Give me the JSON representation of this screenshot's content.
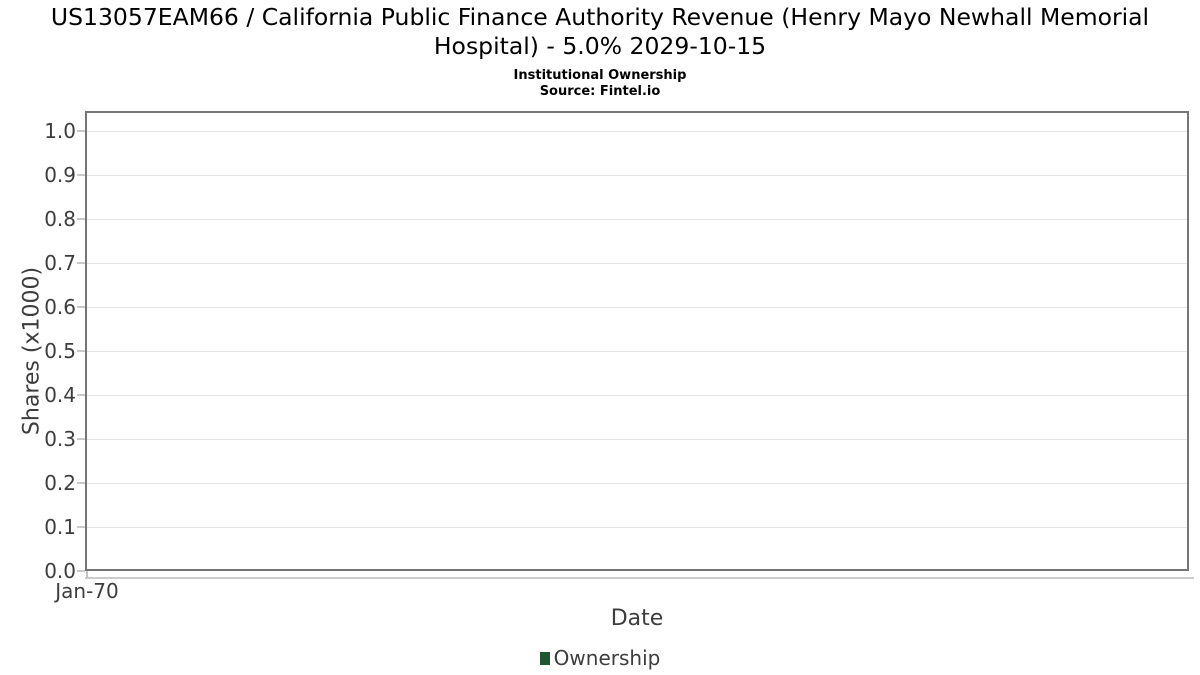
{
  "chart_data": {
    "type": "line",
    "title": "US13057EAM66 / California Public Finance Authority Revenue (Henry Mayo Newhall Memorial Hospital) - 5.0% 2029-10-15",
    "subtitle": "Institutional Ownership",
    "source": "Source: Fintel.io",
    "xlabel": "Date",
    "ylabel": "Shares (x1000)",
    "x_ticks": [
      "Jan-70"
    ],
    "y_ticks": [
      "0.0",
      "0.1",
      "0.2",
      "0.3",
      "0.4",
      "0.5",
      "0.6",
      "0.7",
      "0.8",
      "0.9",
      "1.0"
    ],
    "ylim": [
      0.0,
      1.045
    ],
    "grid": true,
    "legend_position": "bottom",
    "series": [
      {
        "name": "Ownership",
        "color": "#1e5631",
        "x": [],
        "values": []
      }
    ]
  }
}
